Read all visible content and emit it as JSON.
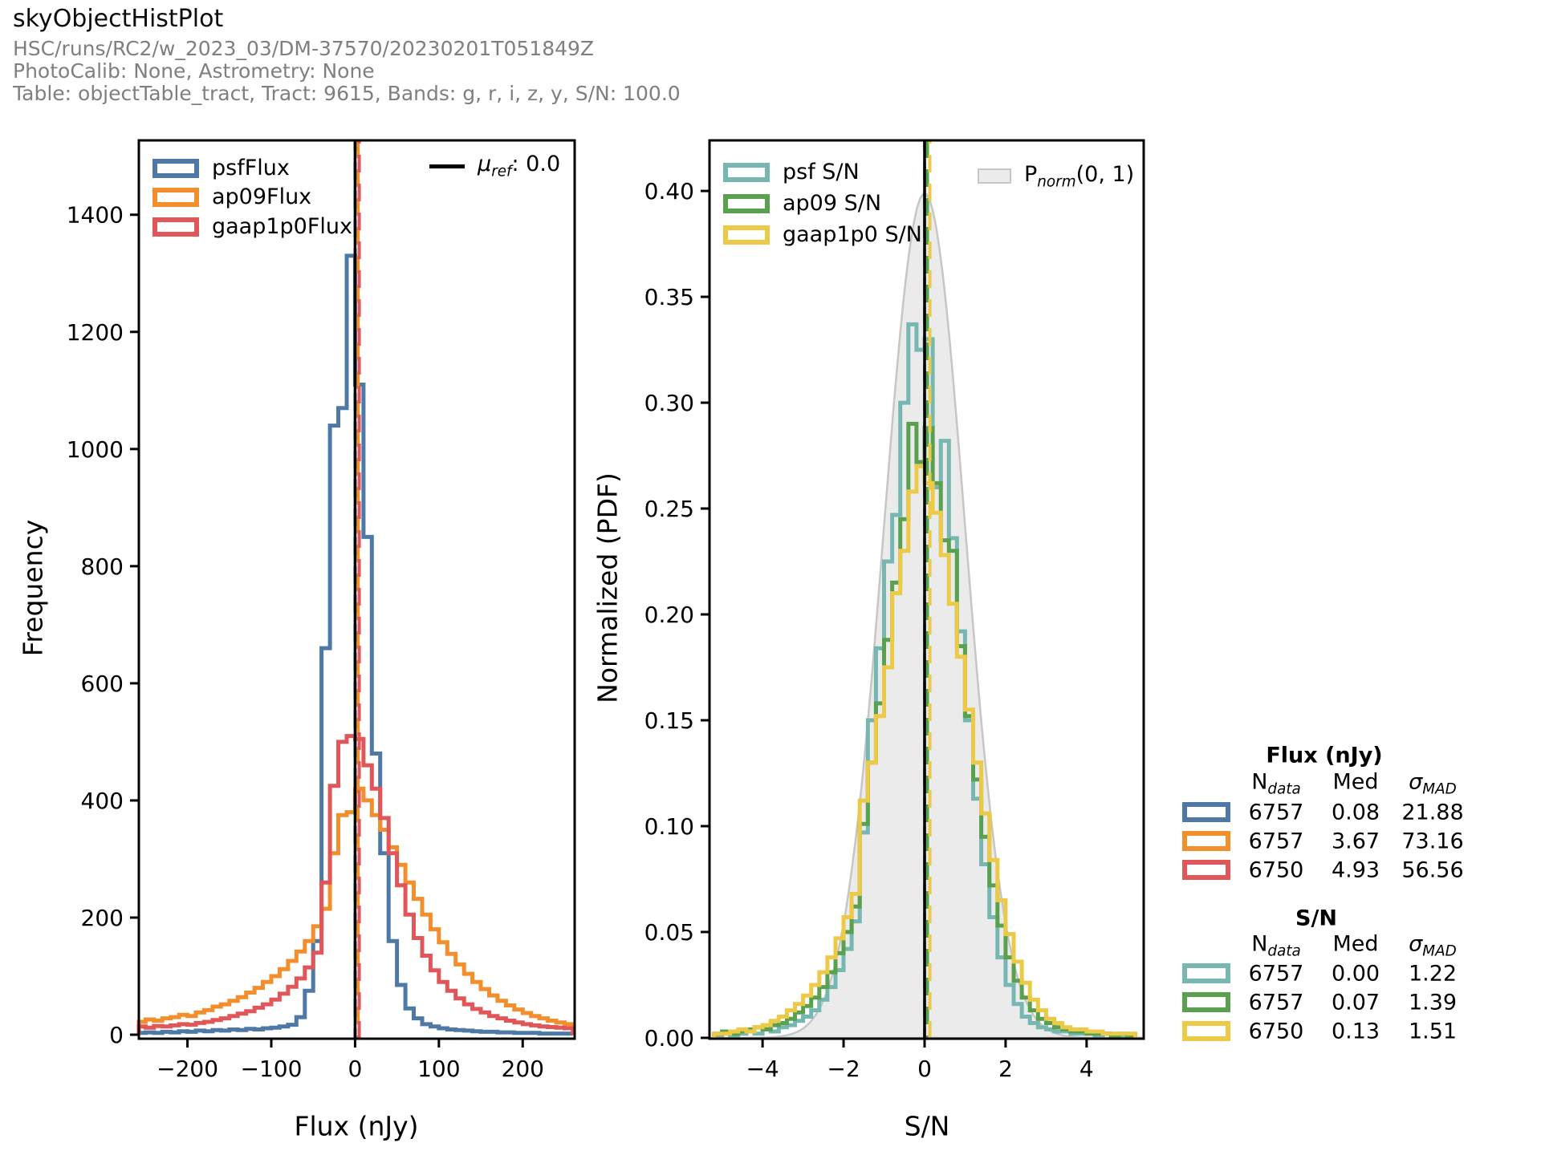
{
  "header": {
    "title": "skyObjectHistPlot",
    "run": "HSC/runs/RC2/w_2023_03/DM-37570/20230201T051849Z",
    "calib": "PhotoCalib: None, Astrometry: None",
    "table": "Table: objectTable_tract, Tract: 9615, Bands: g, r, i, z, y, S/N: 100.0"
  },
  "colors": {
    "psf_flux": "#4E79A7",
    "ap09_flux": "#F28E2B",
    "gaap_flux": "#E15759",
    "psf_sn": "#76B7B2",
    "ap09_sn": "#59A14F",
    "gaap_sn": "#EDC948",
    "ref_line": "#000000",
    "norm_fill": "#EBEBEB",
    "norm_edge": "#C6C6C6"
  },
  "left_panel": {
    "ylabel": "Frequency",
    "xlabel": "Flux (nJy)",
    "legend": [
      {
        "label": "psfFlux",
        "color_key": "psf_flux"
      },
      {
        "label": "ap09Flux",
        "color_key": "ap09_flux"
      },
      {
        "label": "gaap1p0Flux",
        "color_key": "gaap_flux"
      }
    ],
    "mu_legend": {
      "symbol": "μ",
      "sub": "ref",
      "rest": ": 0.0"
    }
  },
  "right_panel": {
    "ylabel": "Normalized (PDF)",
    "xlabel": "S/N",
    "legend": [
      {
        "label": "psf S/N",
        "color_key": "psf_sn"
      },
      {
        "label": "ap09 S/N",
        "color_key": "ap09_sn"
      },
      {
        "label": "gaap1p0 S/N",
        "color_key": "gaap_sn"
      }
    ],
    "pnorm_legend": {
      "p": "P",
      "sub": "norm",
      "rest": "(0, 1)"
    }
  },
  "stats": {
    "flux": {
      "title": "Flux (nJy)",
      "headers": {
        "n_base": "N",
        "n_sub": "data",
        "med": "Med",
        "sigma_base": "σ",
        "sigma_sub": "MAD"
      },
      "rows": [
        {
          "n": "6757",
          "med": "0.08",
          "sigma": "21.88",
          "color_key": "psf_flux"
        },
        {
          "n": "6757",
          "med": "3.67",
          "sigma": "73.16",
          "color_key": "ap09_flux"
        },
        {
          "n": "6750",
          "med": "4.93",
          "sigma": "56.56",
          "color_key": "gaap_flux"
        }
      ]
    },
    "sn": {
      "title": "S/N",
      "headers": {
        "n_base": "N",
        "n_sub": "data",
        "med": "Med",
        "sigma_base": "σ",
        "sigma_sub": "MAD"
      },
      "rows": [
        {
          "n": "6757",
          "med": "0.00",
          "sigma": "1.22",
          "color_key": "psf_sn"
        },
        {
          "n": "6757",
          "med": "0.07",
          "sigma": "1.39",
          "color_key": "ap09_sn"
        },
        {
          "n": "6750",
          "med": "0.13",
          "sigma": "1.51",
          "color_key": "gaap_sn"
        }
      ]
    }
  },
  "chart_data": [
    {
      "type": "bar",
      "style": "step-histogram",
      "title": "Flux histogram",
      "xlabel": "Flux (nJy)",
      "ylabel": "Frequency",
      "xlim": [
        -258,
        262
      ],
      "ylim": [
        -6.8,
        1527
      ],
      "bin_start": -260,
      "bin_width": 10,
      "grid": false,
      "legend_position": "upper left",
      "series": [
        {
          "id": "psfFlux",
          "name": "psfFlux",
          "color_key": "psf_flux",
          "values": [
            3,
            4,
            3,
            5,
            4,
            6,
            5,
            7,
            6,
            8,
            7,
            9,
            8,
            10,
            9,
            11,
            12,
            14,
            17,
            30,
            75,
            160,
            660,
            1040,
            1070,
            1330,
            1110,
            850,
            480,
            310,
            160,
            85,
            45,
            28,
            18,
            14,
            11,
            9,
            8,
            7,
            6,
            5,
            5,
            4,
            4,
            3,
            3,
            3,
            2,
            2,
            2,
            2
          ]
        },
        {
          "id": "ap09Flux",
          "name": "ap09Flux",
          "color_key": "ap09_flux",
          "values": [
            22,
            26,
            24,
            28,
            30,
            34,
            32,
            38,
            42,
            48,
            52,
            58,
            64,
            72,
            80,
            90,
            100,
            112,
            126,
            142,
            160,
            185,
            215,
            310,
            375,
            380,
            420,
            400,
            375,
            350,
            320,
            290,
            260,
            232,
            205,
            180,
            158,
            138,
            120,
            104,
            90,
            78,
            67,
            58,
            50,
            43,
            37,
            32,
            28,
            24,
            21,
            18
          ]
        },
        {
          "id": "gaap1p0Flux",
          "name": "gaap1p0Flux",
          "color_key": "gaap_flux",
          "values": [
            14,
            12,
            15,
            14,
            16,
            18,
            17,
            20,
            22,
            25,
            28,
            32,
            36,
            40,
            46,
            52,
            60,
            70,
            82,
            96,
            115,
            140,
            260,
            425,
            500,
            510,
            505,
            460,
            420,
            370,
            310,
            255,
            205,
            165,
            135,
            110,
            90,
            75,
            62,
            52,
            44,
            38,
            32,
            28,
            24,
            21,
            18,
            16,
            14,
            13,
            12,
            11
          ]
        }
      ],
      "vlines": [
        {
          "id": "psf-median",
          "value": 0.08,
          "style": "dashed",
          "color_key": "psf_flux",
          "dash_offset": 9
        },
        {
          "id": "ap09-median",
          "value": 3.67,
          "style": "dashed",
          "color_key": "ap09_flux",
          "dash_offset": 0
        },
        {
          "id": "gaap-median",
          "value": 4.93,
          "style": "dashed",
          "color_key": "gaap_flux",
          "dash_offset": 18
        },
        {
          "id": "mu-ref",
          "value": 0.0,
          "style": "solid",
          "color_key": "ref_line",
          "label": "μref: 0.0"
        }
      ],
      "xticks": [
        {
          "v": -200,
          "label": "−200"
        },
        {
          "v": -100,
          "label": "−100"
        },
        {
          "v": 0,
          "label": "0"
        },
        {
          "v": 100,
          "label": "100"
        },
        {
          "v": 200,
          "label": "200"
        }
      ],
      "yticks": [
        {
          "v": 0,
          "label": "0"
        },
        {
          "v": 200,
          "label": "200"
        },
        {
          "v": 400,
          "label": "400"
        },
        {
          "v": 600,
          "label": "600"
        },
        {
          "v": 800,
          "label": "800"
        },
        {
          "v": 1000,
          "label": "1000"
        },
        {
          "v": 1200,
          "label": "1200"
        },
        {
          "v": 1400,
          "label": "1400"
        }
      ]
    },
    {
      "type": "bar",
      "style": "step-histogram",
      "title": "S/N histogram",
      "xlabel": "S/N",
      "ylabel": "Normalized (PDF)",
      "xlim": [
        -5.31,
        5.41
      ],
      "ylim": [
        -0.0004,
        0.4239
      ],
      "bin_start": -5.2,
      "bin_width": 0.2,
      "grid": false,
      "legend_position": "upper left",
      "normal_curve": {
        "mean": 0,
        "sigma": 1,
        "peak": 0.3989,
        "label": "Pnorm(0, 1)",
        "fill_key": "norm_fill",
        "edge_key": "norm_edge"
      },
      "series": [
        {
          "id": "psf-sn",
          "name": "psf S/N",
          "color_key": "psf_sn",
          "values": [
            0.001,
            0.002,
            0.001,
            0.002,
            0.003,
            0.002,
            0.004,
            0.003,
            0.005,
            0.006,
            0.008,
            0.01,
            0.013,
            0.018,
            0.024,
            0.032,
            0.042,
            0.055,
            0.097,
            0.15,
            0.184,
            0.225,
            0.247,
            0.3,
            0.337,
            0.325,
            0.33,
            0.26,
            0.282,
            0.236,
            0.192,
            0.15,
            0.113,
            0.082,
            0.057,
            0.038,
            0.025,
            0.016,
            0.01,
            0.007,
            0.005,
            0.004,
            0.003,
            0.003,
            0.002,
            0.002,
            0.002,
            0.001,
            0.002,
            0.001,
            0.001,
            0.001
          ]
        },
        {
          "id": "ap09-sn",
          "name": "ap09 S/N",
          "color_key": "ap09_sn",
          "values": [
            0.002,
            0.003,
            0.002,
            0.003,
            0.004,
            0.005,
            0.004,
            0.006,
            0.007,
            0.009,
            0.012,
            0.015,
            0.019,
            0.024,
            0.031,
            0.04,
            0.05,
            0.062,
            0.101,
            0.13,
            0.158,
            0.188,
            0.215,
            0.245,
            0.29,
            0.272,
            0.288,
            0.262,
            0.235,
            0.23,
            0.185,
            0.152,
            0.122,
            0.095,
            0.072,
            0.053,
            0.038,
            0.027,
            0.019,
            0.013,
            0.009,
            0.007,
            0.005,
            0.004,
            0.003,
            0.003,
            0.002,
            0.002,
            0.002,
            0.001,
            0.002,
            0.001
          ]
        },
        {
          "id": "gaap1p0-sn",
          "name": "gaap1p0 S/N",
          "color_key": "gaap_sn",
          "values": [
            0.002,
            0.002,
            0.003,
            0.004,
            0.003,
            0.005,
            0.006,
            0.008,
            0.01,
            0.013,
            0.016,
            0.02,
            0.025,
            0.031,
            0.038,
            0.047,
            0.057,
            0.068,
            0.112,
            0.13,
            0.152,
            0.175,
            0.21,
            0.23,
            0.258,
            0.27,
            0.262,
            0.248,
            0.228,
            0.205,
            0.18,
            0.155,
            0.13,
            0.106,
            0.084,
            0.065,
            0.049,
            0.036,
            0.026,
            0.018,
            0.013,
            0.009,
            0.007,
            0.005,
            0.004,
            0.004,
            0.003,
            0.003,
            0.002,
            0.002,
            0.002,
            0.002
          ]
        }
      ],
      "vlines": [
        {
          "id": "psf-sn-median",
          "value": 0.0,
          "style": "dashed",
          "color_key": "psf_sn",
          "dash_offset": 9
        },
        {
          "id": "ap09-sn-median",
          "value": 0.07,
          "style": "dashed",
          "color_key": "ap09_sn",
          "dash_offset": 0
        },
        {
          "id": "gaap-sn-median",
          "value": 0.13,
          "style": "dashed",
          "color_key": "gaap_sn",
          "dash_offset": 18
        },
        {
          "id": "mu-ref-sn",
          "value": 0.0,
          "style": "solid",
          "color_key": "ref_line"
        }
      ],
      "xticks": [
        {
          "v": -4,
          "label": "−4"
        },
        {
          "v": -2,
          "label": "−2"
        },
        {
          "v": 0,
          "label": "0"
        },
        {
          "v": 2,
          "label": "2"
        },
        {
          "v": 4,
          "label": "4"
        }
      ],
      "yticks": [
        {
          "v": 0.0,
          "label": "0.00"
        },
        {
          "v": 0.05,
          "label": "0.05"
        },
        {
          "v": 0.1,
          "label": "0.10"
        },
        {
          "v": 0.15,
          "label": "0.15"
        },
        {
          "v": 0.2,
          "label": "0.20"
        },
        {
          "v": 0.25,
          "label": "0.25"
        },
        {
          "v": 0.3,
          "label": "0.30"
        },
        {
          "v": 0.35,
          "label": "0.35"
        },
        {
          "v": 0.4,
          "label": "0.40"
        }
      ]
    }
  ]
}
